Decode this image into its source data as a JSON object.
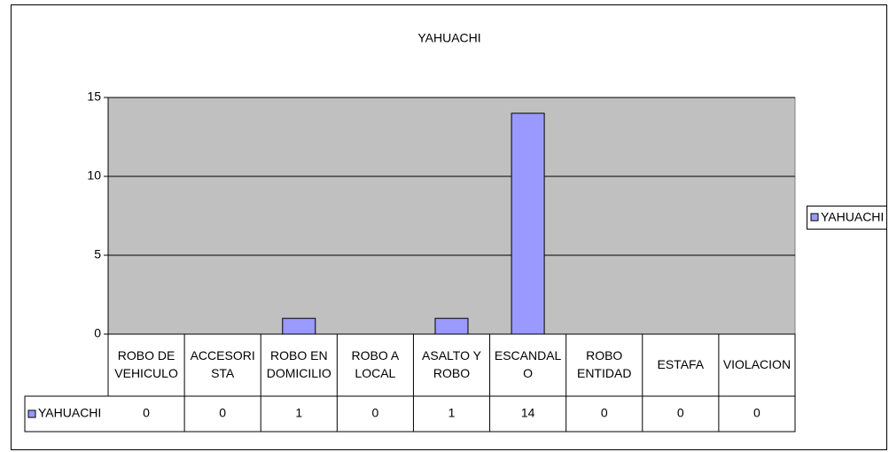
{
  "chart_data": {
    "type": "bar",
    "title": "YAHUACHI",
    "categories": [
      "ROBO DE\nVEHICULO",
      "ACCESORI\nSTA",
      "ROBO EN\nDOMICILIO",
      "ROBO A\nLOCAL",
      "ASALTO Y\nROBO",
      "ESCANDAL\nO",
      "ROBO\nENTIDAD",
      "ESTAFA",
      "VIOLACION"
    ],
    "series": [
      {
        "name": "YAHUACHI",
        "color": "#9999ff",
        "values": [
          0,
          0,
          1,
          0,
          1,
          14,
          0,
          0,
          0
        ]
      }
    ],
    "ylim": [
      0,
      15
    ],
    "yticks": [
      0,
      5,
      10,
      15
    ],
    "grid": true,
    "legend": "right"
  }
}
